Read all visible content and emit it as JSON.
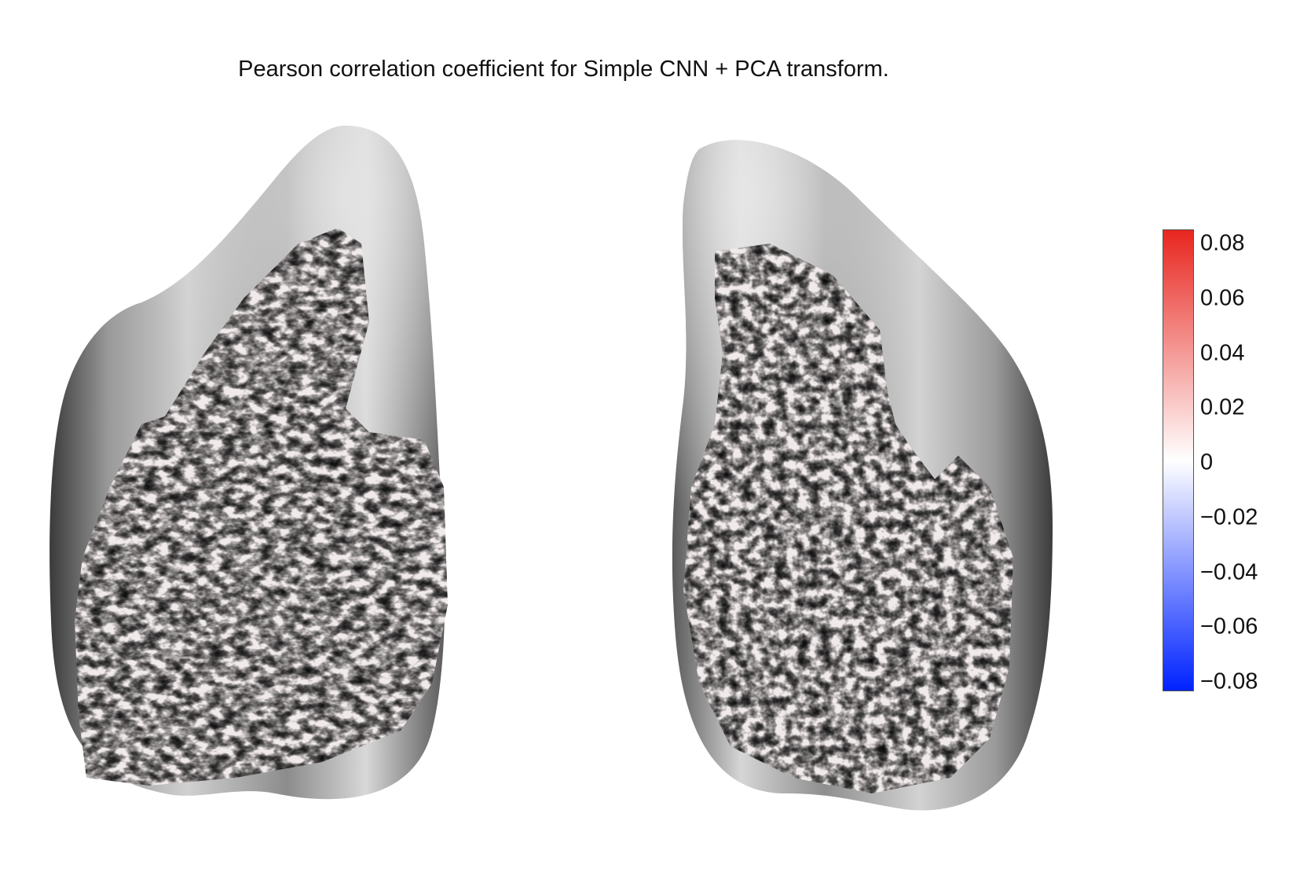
{
  "title": "Pearson correlation coefficient for Simple CNN + PCA transform.",
  "views": [
    {
      "name": "left-hemisphere-view",
      "surface": "inflated cortex, grayscale shading",
      "overlay": "correlation map"
    },
    {
      "name": "right-hemisphere-view",
      "surface": "inflated cortex, grayscale shading",
      "overlay": "correlation map"
    }
  ],
  "colorbar": {
    "min": -0.08,
    "max": 0.08,
    "colors": {
      "low": "#0022ff",
      "mid": "#ffffff",
      "high": "#e8261f"
    },
    "ticks": [
      "0.08",
      "0.06",
      "0.04",
      "0.02",
      "0",
      "−0.02",
      "−0.04",
      "−0.06",
      "−0.08"
    ]
  }
}
